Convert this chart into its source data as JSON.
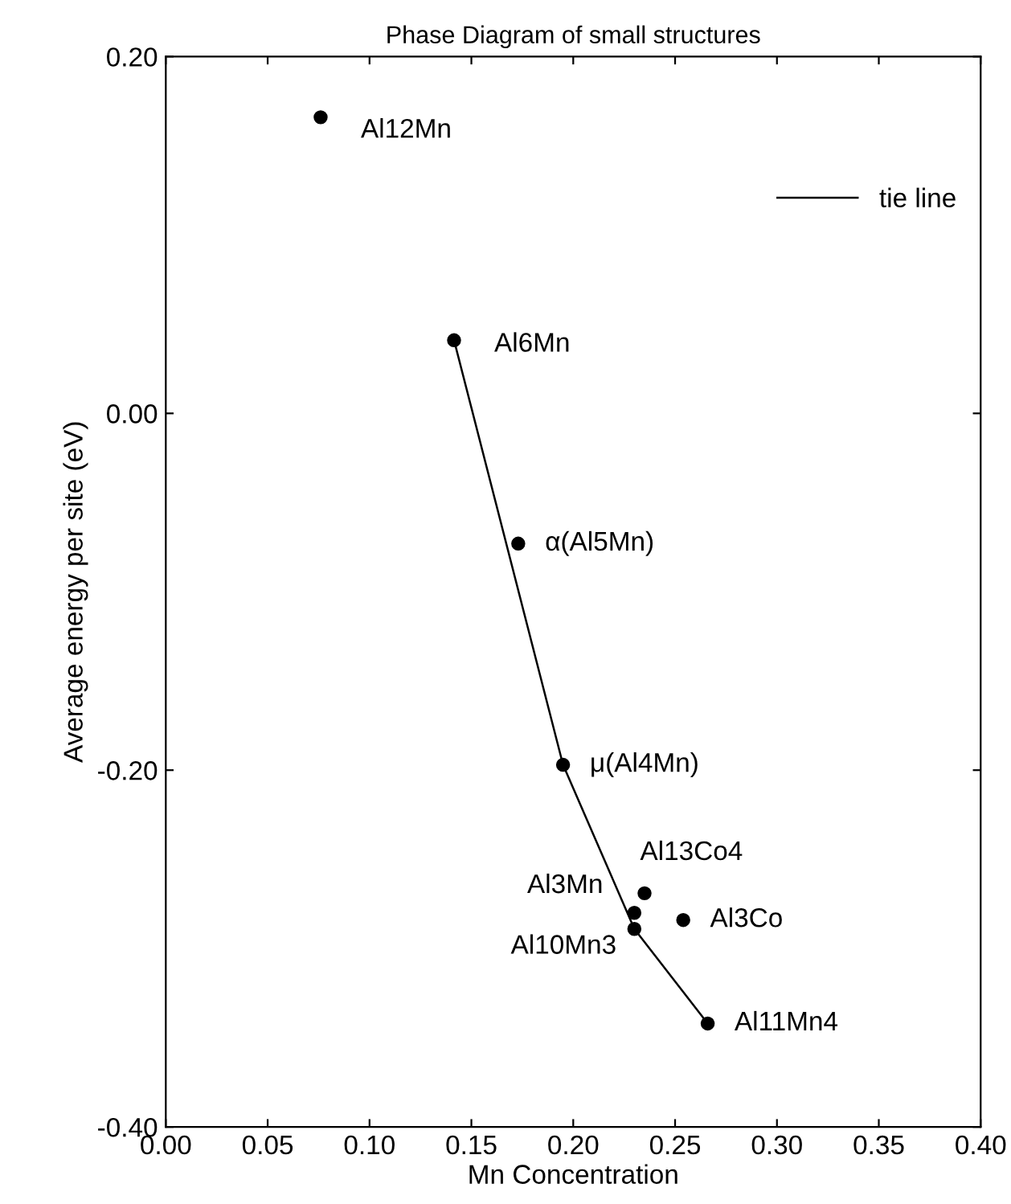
{
  "chart_data": {
    "type": "scatter",
    "title": "Phase Diagram of small structures",
    "xlabel": "Mn Concentration",
    "ylabel": "Average energy per site (eV)",
    "xlim": [
      0.0,
      0.4
    ],
    "xticks": [
      {
        "value": 0.0,
        "label": "0.00"
      },
      0.05,
      {
        "value": 0.1,
        "label": "0.10"
      },
      0.15,
      {
        "value": 0.2,
        "label": "0.20"
      },
      0.25,
      {
        "value": 0.3,
        "label": "0.30"
      },
      0.35,
      {
        "value": 0.4,
        "label": "0.40"
      }
    ],
    "ylim": [
      -0.4,
      0.2
    ],
    "yticks": [
      {
        "value": -0.4,
        "label": "-0.40"
      },
      {
        "value": -0.2,
        "label": "-0.20"
      },
      {
        "value": 0.0,
        "label": "0.00"
      },
      {
        "value": 0.2,
        "label": "0.20"
      }
    ],
    "grid": false,
    "legend": "top right",
    "series": [
      {
        "color": "#000000",
        "marker": "circle",
        "x": [
          0.076,
          0.1415,
          0.173,
          0.195,
          0.235,
          0.23,
          0.23,
          0.254,
          0.266
        ],
        "values": [
          0.166,
          0.041,
          -0.073,
          -0.197,
          -0.269,
          -0.28,
          -0.289,
          -0.284,
          -0.342
        ]
      },
      {
        "type": "line",
        "name": "tie line",
        "color": "#000000",
        "line_style": "solid",
        "x": [
          0.1415,
          0.195,
          0.23,
          0.266
        ],
        "values": [
          0.041,
          -0.197,
          -0.289,
          -0.342
        ]
      }
    ],
    "annotations": [
      {
        "text": "Al12Mn",
        "x": 0.076,
        "y": 0.166
      },
      {
        "text": "Al6Mn",
        "x": 0.1415,
        "y": 0.041
      },
      {
        "text": "α(Al5Mn)",
        "x": 0.173,
        "y": -0.073
      },
      {
        "text": "μ(Al4Mn)",
        "x": 0.195,
        "y": -0.197
      },
      {
        "text": "Al13Co4",
        "x": 0.235,
        "y": -0.269
      },
      {
        "text": "Al3Mn",
        "x": 0.23,
        "y": -0.28
      },
      {
        "text": "Al10Mn3",
        "x": 0.23,
        "y": -0.289
      },
      {
        "text": "Al3Co",
        "x": 0.254,
        "y": -0.284
      },
      {
        "text": "Al11Mn4",
        "x": 0.266,
        "y": -0.342
      }
    ]
  }
}
